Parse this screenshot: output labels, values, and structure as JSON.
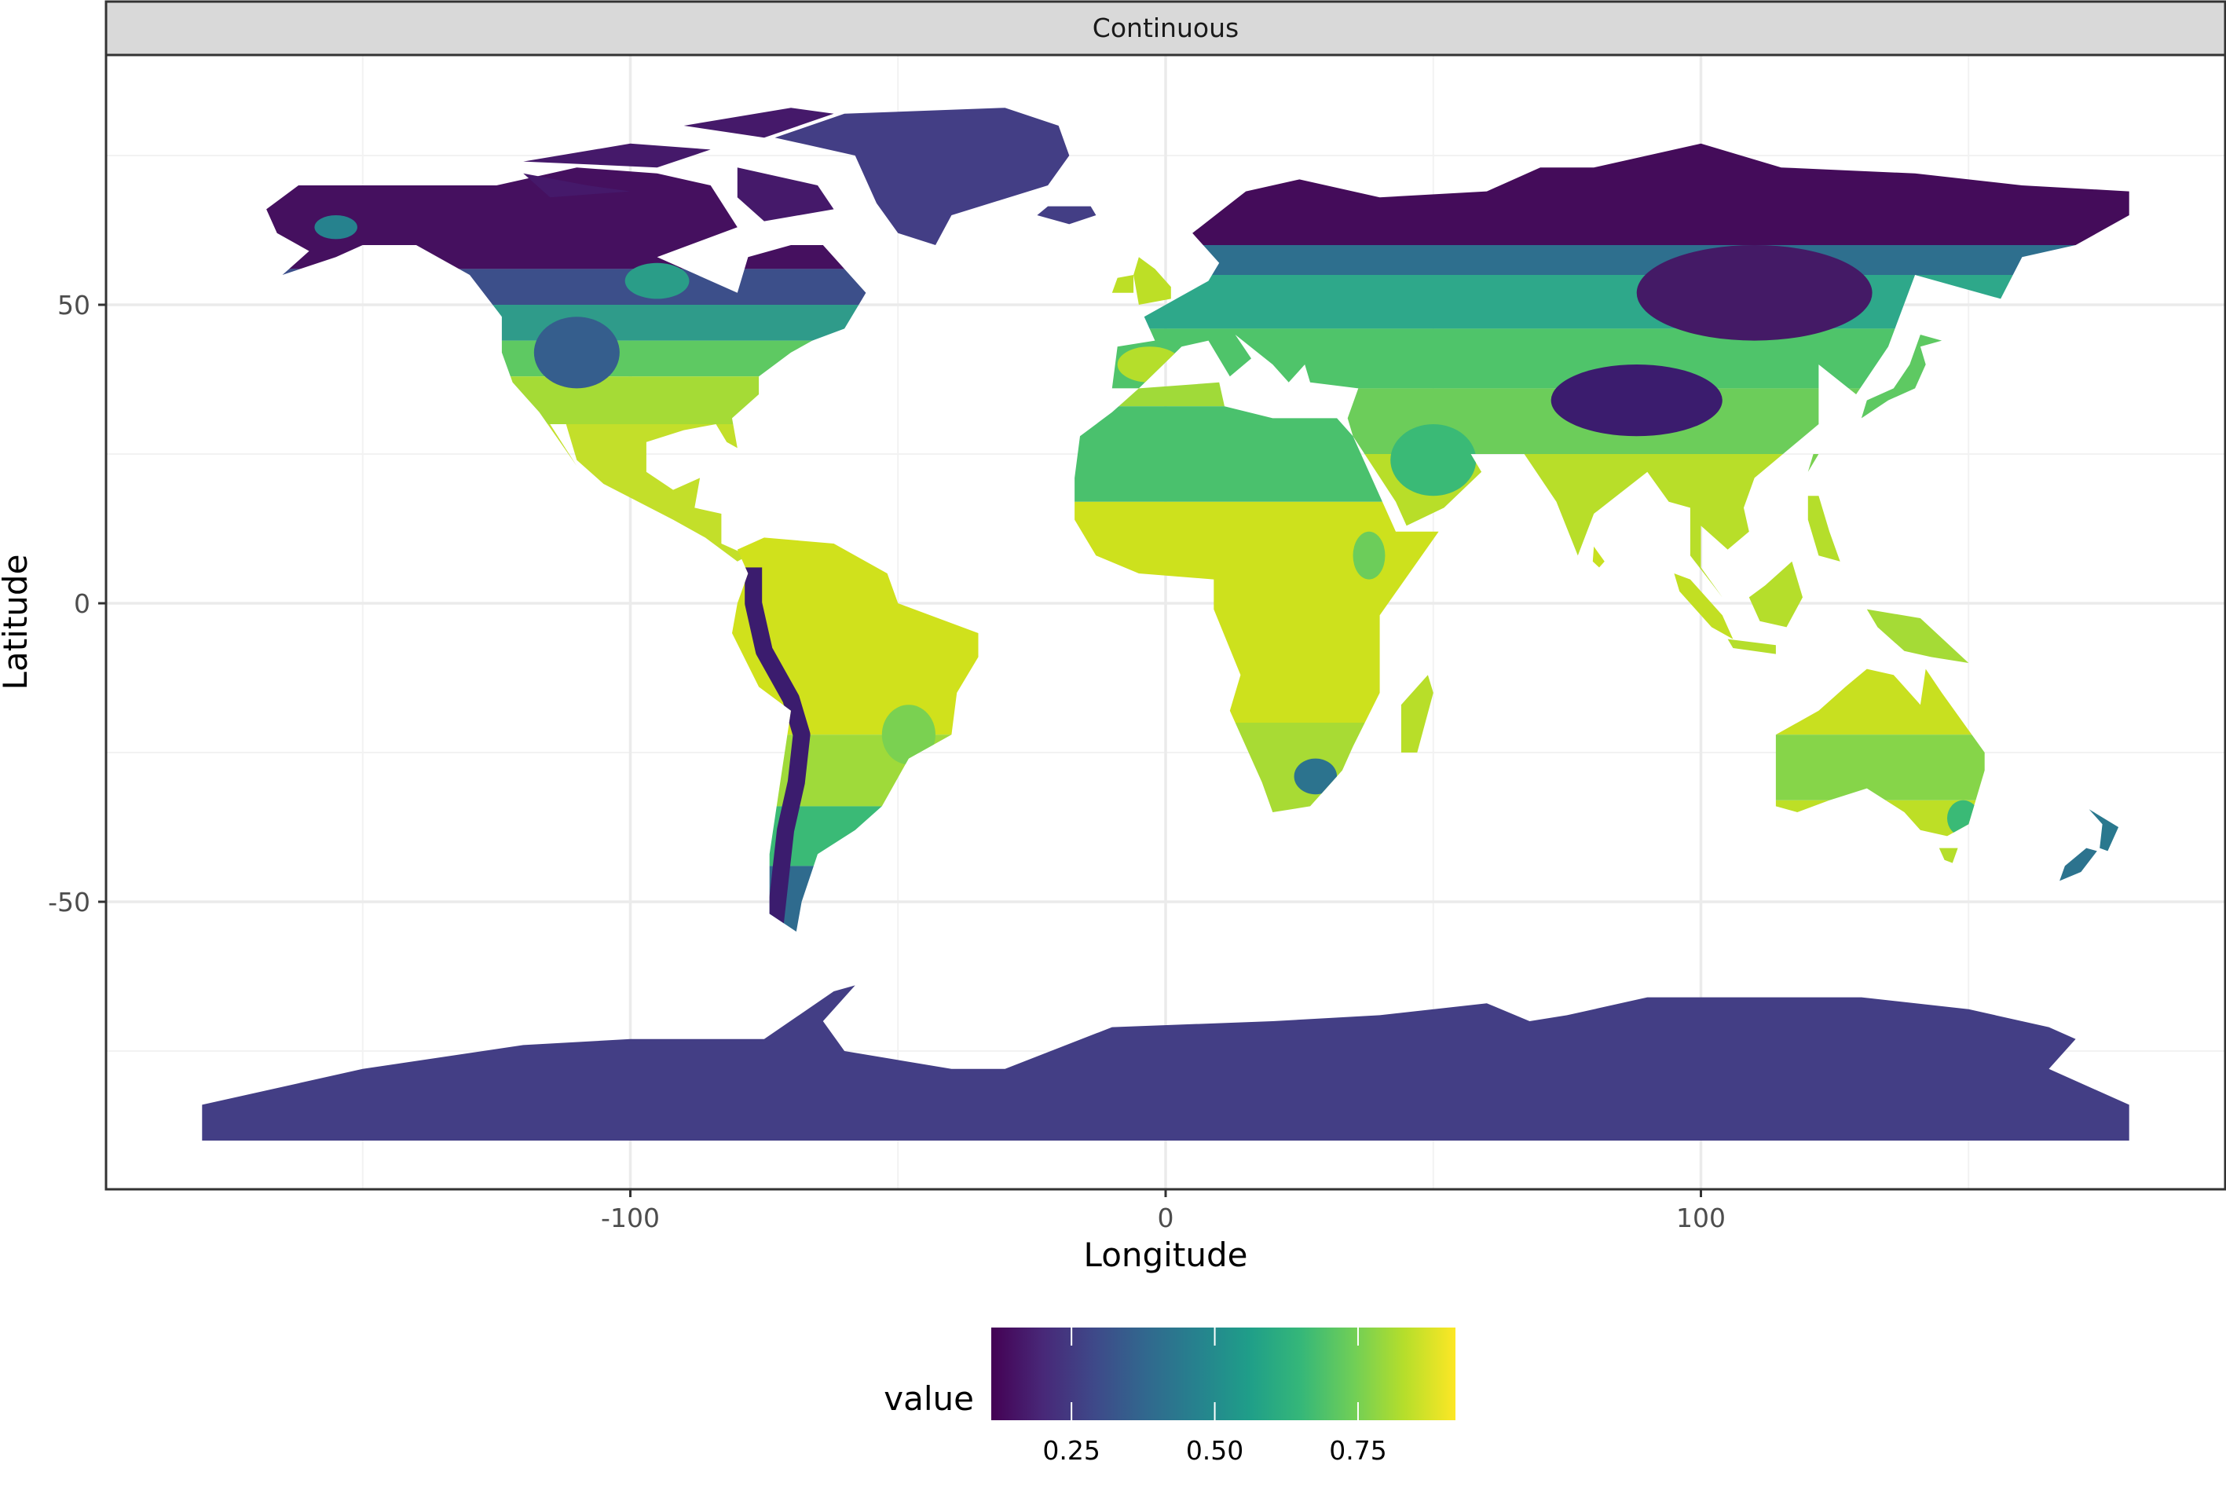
{
  "chart_data": {
    "type": "heatmap",
    "facet_label": "Continuous",
    "xlabel": "Longitude",
    "ylabel": "Latitude",
    "x_ticks": [
      -100,
      0,
      100
    ],
    "y_ticks": [
      50,
      0,
      -50
    ],
    "x_tick_labels": [
      "-100",
      "0",
      "100"
    ],
    "y_tick_labels": [
      "50",
      "0",
      "-50"
    ],
    "xlim": [
      -198,
      198
    ],
    "ylim": [
      -98,
      92
    ],
    "grid": true,
    "legend": {
      "title": "value",
      "position": "bottom",
      "range": [
        0.11,
        0.92
      ],
      "breaks": [
        0.25,
        0.5,
        0.75
      ],
      "labels": [
        "0.25",
        "0.50",
        "0.75"
      ],
      "colormap": "viridis",
      "colors": [
        "#440154",
        "#482878",
        "#3e4989",
        "#31688e",
        "#26828e",
        "#1f9e89",
        "#35b779",
        "#6ece58",
        "#b5de2b",
        "#fde725"
      ]
    }
  }
}
